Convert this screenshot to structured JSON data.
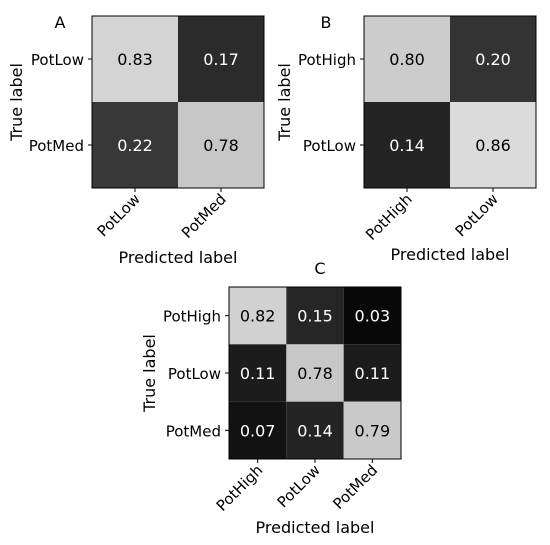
{
  "chart_data": [
    {
      "type": "heatmap",
      "panel_label": "A",
      "xlabel": "Predicted label",
      "ylabel": "True label",
      "x_categories": [
        "PotLow",
        "PotMed"
      ],
      "y_categories": [
        "PotLow",
        "PotMed"
      ],
      "values": [
        [
          0.83,
          0.17
        ],
        [
          0.22,
          0.78
        ]
      ],
      "colormap": "gray",
      "vmin": 0,
      "vmax": 1
    },
    {
      "type": "heatmap",
      "panel_label": "B",
      "xlabel": "Predicted label",
      "ylabel": "True label",
      "x_categories": [
        "PotHigh",
        "PotLow"
      ],
      "y_categories": [
        "PotHigh",
        "PotLow"
      ],
      "values": [
        [
          0.8,
          0.2
        ],
        [
          0.14,
          0.86
        ]
      ],
      "colormap": "gray",
      "vmin": 0,
      "vmax": 1
    },
    {
      "type": "heatmap",
      "panel_label": "C",
      "xlabel": "Predicted label",
      "ylabel": "True label",
      "x_categories": [
        "PotHigh",
        "PotLow",
        "PotMed"
      ],
      "y_categories": [
        "PotHigh",
        "PotLow",
        "PotMed"
      ],
      "values": [
        [
          0.82,
          0.15,
          0.03
        ],
        [
          0.11,
          0.78,
          0.11
        ],
        [
          0.07,
          0.14,
          0.79
        ]
      ],
      "colormap": "gray",
      "vmin": 0,
      "vmax": 1
    }
  ]
}
